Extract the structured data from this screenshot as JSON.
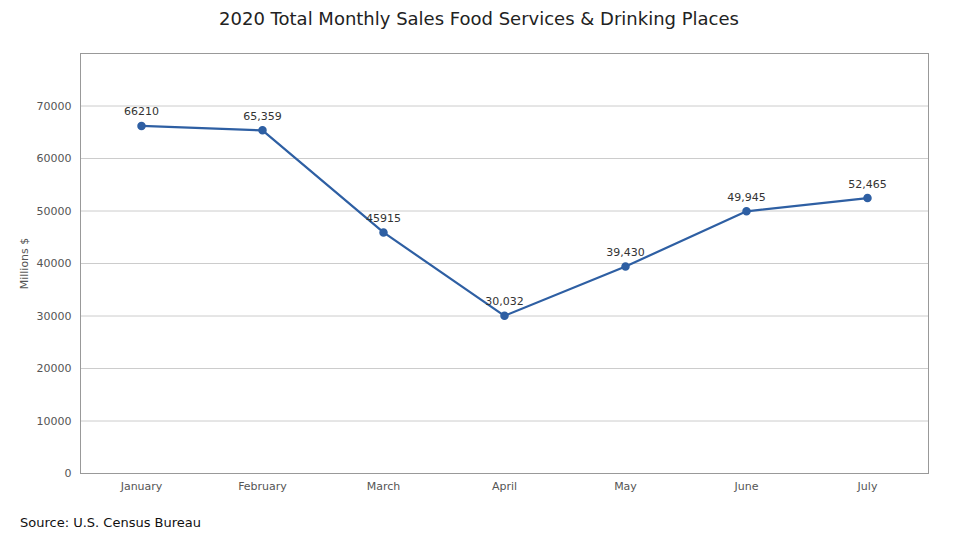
{
  "chart_data": {
    "type": "line",
    "title": "2020 Total Monthly Sales Food Services & Drinking Places",
    "categories": [
      "January",
      "February",
      "March",
      "April",
      "May",
      "June",
      "July"
    ],
    "values": [
      66210,
      65359,
      45915,
      30032,
      39430,
      49945,
      52465
    ],
    "value_labels": [
      "66210",
      "65,359",
      "45915",
      "30,032",
      "39,430",
      "49,945",
      "52,465"
    ],
    "data_labels": true,
    "ylabel": "Millions $",
    "source": "Source: U.S. Census Bureau",
    "color": "#2E5FA3",
    "marker": "circle",
    "ylim": [
      0,
      80000
    ],
    "yticks": [
      0,
      10000,
      20000,
      30000,
      40000,
      50000,
      60000,
      70000
    ],
    "grid": true
  }
}
